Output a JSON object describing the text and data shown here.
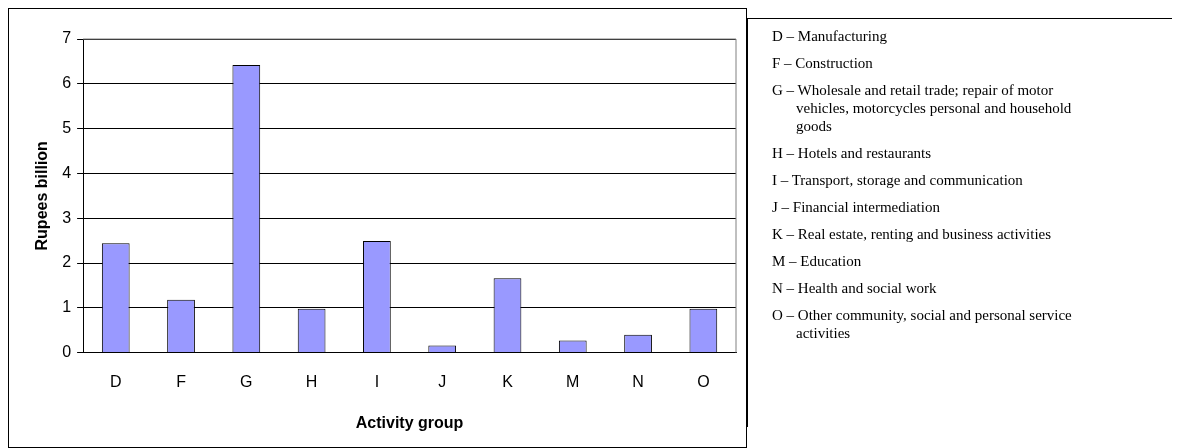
{
  "chart_data": {
    "type": "bar",
    "xlabel": "Activity group",
    "ylabel": "Rupees billion",
    "categories": [
      "D",
      "F",
      "G",
      "H",
      "I",
      "J",
      "K",
      "M",
      "N",
      "O"
    ],
    "values": [
      2.44,
      1.18,
      6.42,
      0.98,
      2.49,
      0.16,
      1.66,
      0.27,
      0.4,
      0.98
    ],
    "color": "#9999ff",
    "ylim": [
      0,
      7
    ],
    "yticks": [
      0,
      1,
      2,
      3,
      4,
      5,
      6,
      7
    ],
    "grid": "y",
    "legend": false,
    "annotations": [
      "D – Manufacturing",
      "F – Construction",
      "G – Wholesale and retail trade; repair of motor vehicles, motorcycles personal and household goods",
      "H – Hotels and restaurants",
      "I – Transport, storage and communication",
      "J – Financial intermediation",
      "K – Real estate, renting and business activities",
      "M – Education",
      "N – Health and social work",
      "O – Other community, social and personal service activities"
    ]
  }
}
